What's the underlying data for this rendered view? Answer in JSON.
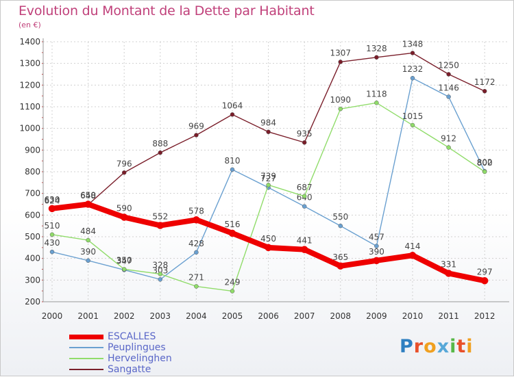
{
  "title": "Evolution du Montant de la Dette par Habitant",
  "subtitle": "(en €)",
  "logo_text": "Proxiti",
  "logo_colors": [
    "#2e7fc0",
    "#e8502a",
    "#f0a020",
    "#57a8d8",
    "#58b848",
    "#e8502a",
    "#f0a020"
  ],
  "chart_data": {
    "type": "line",
    "x": [
      "2000",
      "2001",
      "2002",
      "2003",
      "2004",
      "2005",
      "2006",
      "2007",
      "2008",
      "2009",
      "2010",
      "2011",
      "2012"
    ],
    "ylim": [
      200,
      1400
    ],
    "yticks": [
      "200",
      "300",
      "400",
      "500",
      "600",
      "700",
      "800",
      "900",
      "1000",
      "1100",
      "1200",
      "1300",
      "1400"
    ],
    "grid": true,
    "legend_position": "bottom-left",
    "series": [
      {
        "name": "Sangatte",
        "color": "#7a1e2a",
        "values": [
          624,
          648,
          796,
          888,
          969,
          1064,
          984,
          935,
          1307,
          1328,
          1348,
          1250,
          1172
        ],
        "labels": [
          "624",
          "648",
          "796",
          "888",
          "969",
          "1064",
          "984",
          "935",
          "1307",
          "1328",
          "1348",
          "1250",
          "1172"
        ]
      },
      {
        "name": "Peuplingues",
        "color": "#6aa0d0",
        "values": [
          430,
          390,
          347,
          303,
          428,
          810,
          727,
          640,
          550,
          457,
          1232,
          1146,
          802
        ],
        "labels": [
          "430",
          "390",
          "347",
          "303",
          "428",
          "810",
          "727",
          "640",
          "550",
          "457",
          "1232",
          "1146",
          "802"
        ]
      },
      {
        "name": "Hervelinghen",
        "color": "#90dc6a",
        "values": [
          510,
          484,
          350,
          328,
          271,
          249,
          739,
          687,
          1090,
          1118,
          1015,
          912,
          800
        ],
        "labels": [
          "510",
          "484",
          "350",
          "328",
          "271",
          "249",
          "739",
          "687",
          "1090",
          "1118",
          "1015",
          "912",
          "800"
        ]
      },
      {
        "name": "ESCALLES",
        "color": "#ee0000",
        "values": [
          630,
          650,
          590,
          552,
          578,
          516,
          450,
          441,
          365,
          390,
          414,
          331,
          297
        ],
        "labels": [
          "630",
          "650",
          "590",
          "552",
          "578",
          "516",
          "450",
          "441",
          "365",
          "390",
          "414",
          "331",
          "297"
        ]
      }
    ],
    "legend_order": [
      "ESCALLES",
      "Peuplingues",
      "Hervelinghen",
      "Sangatte"
    ]
  }
}
